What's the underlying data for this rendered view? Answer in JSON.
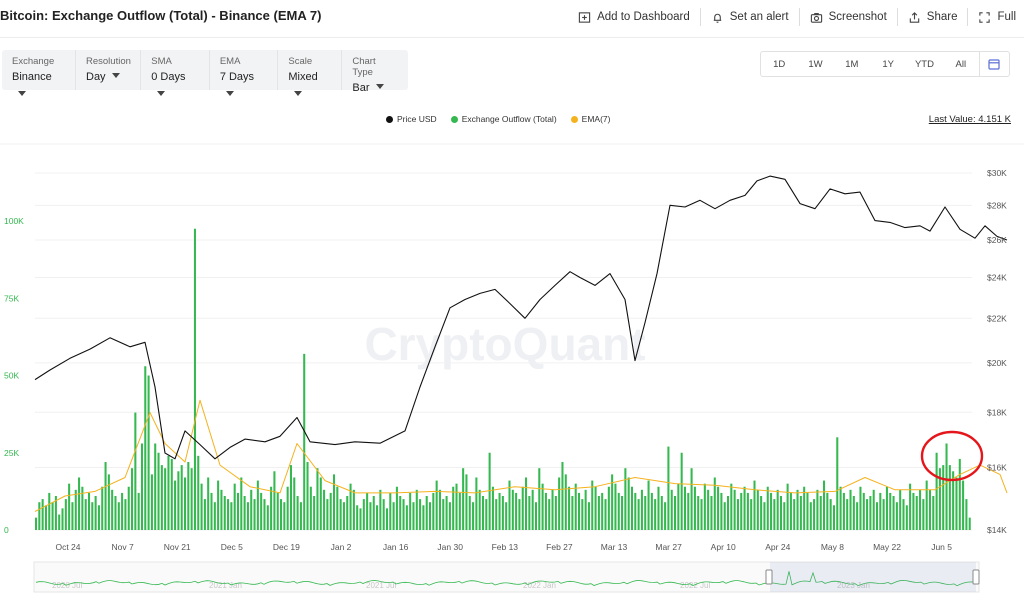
{
  "header": {
    "title": "Bitcoin: Exchange Outflow (Total) - Binance (EMA 7)",
    "actions": [
      {
        "label": "Add to Dashboard",
        "icon": "add-dashboard-icon"
      },
      {
        "label": "Set an alert",
        "icon": "bell-icon"
      },
      {
        "label": "Screenshot",
        "icon": "camera-icon"
      },
      {
        "label": "Share",
        "icon": "share-icon"
      },
      {
        "label": "Full",
        "icon": "fullscreen-icon"
      }
    ]
  },
  "controls": [
    {
      "label": "Exchange",
      "value": "Binance"
    },
    {
      "label": "Resolution",
      "value": "Day"
    },
    {
      "label": "SMA",
      "value": "0 Days"
    },
    {
      "label": "EMA",
      "value": "7 Days"
    },
    {
      "label": "Scale",
      "value": "Mixed"
    },
    {
      "label": "Chart Type",
      "value": "Bar"
    }
  ],
  "ranges": [
    "1D",
    "1W",
    "1M",
    "1Y",
    "YTD",
    "All"
  ],
  "legend": [
    {
      "label": "Price USD",
      "color": "#111111"
    },
    {
      "label": "Exchange Outflow (Total)",
      "color": "#34b84f"
    },
    {
      "label": "EMA(7)",
      "color": "#f5b21f"
    }
  ],
  "last_value": "Last Value: 4.151 K",
  "watermark": "CryptoQuant",
  "chart_data": {
    "type": "bar",
    "x_ticks": [
      "Oct 24",
      "Nov 7",
      "Nov 21",
      "Dec 5",
      "Dec 19",
      "Jan 2",
      "Jan 16",
      "Jan 30",
      "Feb 13",
      "Feb 27",
      "Mar 13",
      "Mar 27",
      "Apr 10",
      "Apr 24",
      "May 8",
      "May 22",
      "Jun 5"
    ],
    "left_axis": {
      "ticks": [
        "0",
        "25K",
        "50K",
        "75K",
        "100K"
      ],
      "values": [
        0,
        25000,
        50000,
        75000,
        100000
      ]
    },
    "right_axis": {
      "ticks": [
        "$14K",
        "$16K",
        "$18K",
        "$20K",
        "$22K",
        "$24K",
        "$26K",
        "$28K",
        "$30K"
      ],
      "values": [
        14000,
        16000,
        18000,
        20000,
        22000,
        24000,
        26000,
        28000,
        30000
      ]
    },
    "series": [
      {
        "name": "Exchange Outflow (Total)",
        "color": "#34b84f",
        "kind": "bar",
        "axis": "left",
        "values": [
          4000,
          9000,
          10000,
          8000,
          12000,
          9000,
          11000,
          5000,
          7000,
          10000,
          15000,
          9000,
          13000,
          17000,
          14000,
          10000,
          12000,
          9000,
          11000,
          8000,
          14000,
          22000,
          18000,
          13000,
          11000,
          9000,
          12000,
          10000,
          14000,
          20000,
          38000,
          12000,
          28000,
          53000,
          50000,
          18000,
          28000,
          25000,
          21000,
          20000,
          24000,
          23000,
          16000,
          19000,
          21000,
          17000,
          22000,
          20000,
          97500,
          24000,
          15000,
          10000,
          17000,
          12000,
          9000,
          16000,
          13000,
          11000,
          10000,
          9000,
          15000,
          12000,
          17000,
          11000,
          9000,
          13000,
          10000,
          16000,
          12000,
          10000,
          8000,
          14000,
          19000,
          12000,
          10000,
          9000,
          14000,
          21000,
          17000,
          11000,
          9000,
          57000,
          22000,
          14000,
          11000,
          20000,
          17000,
          13000,
          10000,
          12000,
          18000,
          14000,
          10000,
          9000,
          11000,
          15000,
          13000,
          8000,
          7000,
          10000,
          12000,
          9000,
          11000,
          8000,
          13000,
          10000,
          7000,
          12000,
          9000,
          14000,
          11000,
          10000,
          8000,
          12000,
          9000,
          13000,
          10000,
          8000,
          11000,
          9000,
          12000,
          16000,
          13000,
          10000,
          11000,
          9000,
          14000,
          15000,
          12000,
          20000,
          18000,
          11000,
          9000,
          17000,
          13000,
          11000,
          10000,
          25000,
          14000,
          10000,
          12000,
          11000,
          9000,
          16000,
          13000,
          12000,
          10000,
          14000,
          17000,
          11000,
          13000,
          9000,
          20000,
          15000,
          12000,
          10000,
          13000,
          11000,
          17000,
          22000,
          18000,
          14000,
          11000,
          15000,
          12000,
          10000,
          13000,
          9000,
          16000,
          14000,
          11000,
          12000,
          10000,
          14000,
          18000,
          15000,
          12000,
          11000,
          20000,
          17000,
          14000,
          12000,
          10000,
          13000,
          11000,
          16000,
          12000,
          10000,
          14000,
          11000,
          9000,
          27000,
          13000,
          11000,
          15000,
          25000,
          14000,
          12000,
          20000,
          14000,
          11000,
          10000,
          15000,
          13000,
          11000,
          17000,
          14000,
          12000,
          9000,
          11000,
          15000,
          13000,
          10000,
          12000,
          14000,
          12000,
          10000,
          16000,
          13000,
          11000,
          9000,
          14000,
          12000,
          10000,
          13000,
          11000,
          9000,
          15000,
          12000,
          10000,
          13000,
          11000,
          14000,
          12000,
          9000,
          10000,
          13000,
          11000,
          16000,
          12000,
          10000,
          8000,
          30000,
          14000,
          12000,
          10000,
          13000,
          11000,
          9000,
          14000,
          12000,
          10000,
          11000,
          13000,
          9000,
          12000,
          10000,
          14000,
          12000,
          11000,
          9000,
          13000,
          10000,
          8000,
          15000,
          12000,
          11000,
          13000,
          10000,
          16000,
          13000,
          11000,
          25000,
          20000,
          21000,
          28000,
          21000,
          19000,
          17000,
          23000,
          16000,
          10000,
          4000
        ]
      },
      {
        "name": "EMA(7)",
        "color": "#f5b21f",
        "kind": "line",
        "axis": "left",
        "points": [
          [
            0,
            6000
          ],
          [
            30,
            11000
          ],
          [
            60,
            12500
          ],
          [
            90,
            17000
          ],
          [
            115,
            38000
          ],
          [
            130,
            28000
          ],
          [
            150,
            22000
          ],
          [
            165,
            42000
          ],
          [
            185,
            21000
          ],
          [
            215,
            14000
          ],
          [
            245,
            12000
          ],
          [
            262,
            28000
          ],
          [
            290,
            16000
          ],
          [
            320,
            12000
          ],
          [
            360,
            12000
          ],
          [
            400,
            12500
          ],
          [
            440,
            12000
          ],
          [
            480,
            14000
          ],
          [
            520,
            13000
          ],
          [
            560,
            14000
          ],
          [
            600,
            17000
          ],
          [
            640,
            15000
          ],
          [
            680,
            14500
          ],
          [
            720,
            13000
          ],
          [
            760,
            12000
          ],
          [
            800,
            12500
          ],
          [
            830,
            17000
          ],
          [
            860,
            13000
          ],
          [
            900,
            13000
          ],
          [
            925,
            18000
          ],
          [
            945,
            21000
          ],
          [
            965,
            18000
          ],
          [
            972,
            12000
          ]
        ]
      },
      {
        "name": "Price USD",
        "color": "#111111",
        "kind": "line",
        "axis": "right",
        "points": [
          [
            0,
            19300
          ],
          [
            15,
            19700
          ],
          [
            35,
            20200
          ],
          [
            55,
            20600
          ],
          [
            75,
            21100
          ],
          [
            95,
            20700
          ],
          [
            110,
            20900
          ],
          [
            120,
            19000
          ],
          [
            130,
            16500
          ],
          [
            140,
            16300
          ],
          [
            150,
            17300
          ],
          [
            165,
            16800
          ],
          [
            180,
            16300
          ],
          [
            195,
            16700
          ],
          [
            210,
            17000
          ],
          [
            230,
            16900
          ],
          [
            245,
            17100
          ],
          [
            262,
            17800
          ],
          [
            275,
            16900
          ],
          [
            300,
            16800
          ],
          [
            320,
            16900
          ],
          [
            345,
            16850
          ],
          [
            370,
            17300
          ],
          [
            385,
            19000
          ],
          [
            400,
            20700
          ],
          [
            415,
            22500
          ],
          [
            430,
            22900
          ],
          [
            445,
            23200
          ],
          [
            460,
            23400
          ],
          [
            475,
            22700
          ],
          [
            490,
            22000
          ],
          [
            505,
            22900
          ],
          [
            520,
            23600
          ],
          [
            535,
            24300
          ],
          [
            545,
            24000
          ],
          [
            560,
            23600
          ],
          [
            575,
            24200
          ],
          [
            590,
            22900
          ],
          [
            600,
            20100
          ],
          [
            610,
            21800
          ],
          [
            622,
            24200
          ],
          [
            635,
            28000
          ],
          [
            650,
            27900
          ],
          [
            665,
            28300
          ],
          [
            680,
            27800
          ],
          [
            695,
            28300
          ],
          [
            710,
            28600
          ],
          [
            722,
            29500
          ],
          [
            735,
            29800
          ],
          [
            750,
            29600
          ],
          [
            765,
            28100
          ],
          [
            780,
            27800
          ],
          [
            795,
            29000
          ],
          [
            810,
            28700
          ],
          [
            825,
            28800
          ],
          [
            840,
            27100
          ],
          [
            855,
            27000
          ],
          [
            870,
            26700
          ],
          [
            885,
            26800
          ],
          [
            895,
            26500
          ],
          [
            910,
            27900
          ],
          [
            925,
            26600
          ],
          [
            940,
            26100
          ],
          [
            950,
            26800
          ],
          [
            962,
            26200
          ],
          [
            972,
            26000
          ]
        ]
      }
    ],
    "annotation": "red circle highlighting recent outflow spike (Jun 5)",
    "navigator": {
      "labels": [
        "2020 Jul",
        "2021 Jan",
        "2021 Jul",
        "2022 Jan",
        "2022 Jul",
        "2023 Jan"
      ]
    }
  }
}
